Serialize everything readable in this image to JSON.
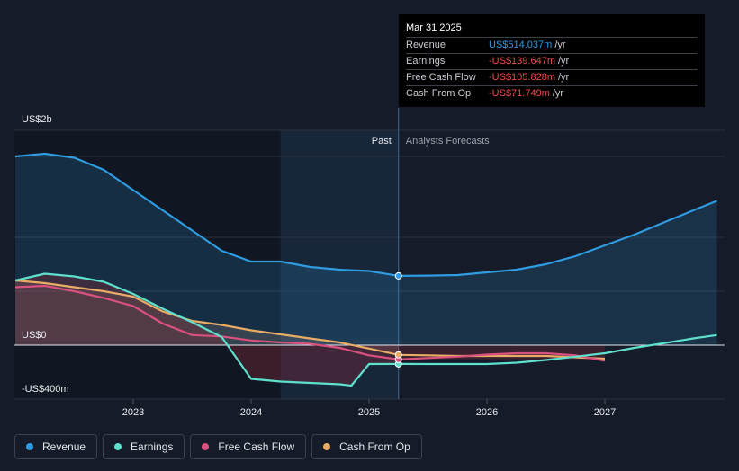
{
  "tooltip": {
    "date": "Mar 31 2025",
    "rows": [
      {
        "label": "Revenue",
        "value": "US$514.037m",
        "unit": "/yr",
        "color": "#2f9be0"
      },
      {
        "label": "Earnings",
        "value": "-US$139.647m",
        "unit": "/yr",
        "color": "#ef4b4b"
      },
      {
        "label": "Free Cash Flow",
        "value": "-US$105.828m",
        "unit": "/yr",
        "color": "#ef4b4b"
      },
      {
        "label": "Cash From Op",
        "value": "-US$71.749m",
        "unit": "/yr",
        "color": "#ef4b4b"
      }
    ]
  },
  "legend": [
    {
      "label": "Revenue",
      "color": "#2f9be0"
    },
    {
      "label": "Earnings",
      "color": "#5ee0cd"
    },
    {
      "label": "Free Cash Flow",
      "color": "#d9517f"
    },
    {
      "label": "Cash From Op",
      "color": "#e8ac66"
    }
  ],
  "chart_data": {
    "type": "line",
    "ylabels": [
      "US$2b",
      "US$0",
      "-US$400m"
    ],
    "past_label": "Past",
    "forecast_label": "Analysts Forecasts",
    "x_ticks": [
      {
        "label": "2023",
        "x": 2023.0
      },
      {
        "label": "2024",
        "x": 2024.0
      },
      {
        "label": "2025",
        "x": 2025.0
      },
      {
        "label": "2026",
        "x": 2026.0
      },
      {
        "label": "2027",
        "x": 2027.0
      }
    ],
    "xlim": [
      2021.75,
      2027.95
    ],
    "ylim": [
      -400,
      1700
    ],
    "past_end": 2025.25,
    "shade_start": 2024.25,
    "series": [
      {
        "name": "Revenue",
        "color": "#2f9be0",
        "points": [
          [
            2022.0,
            1400
          ],
          [
            2022.25,
            1420
          ],
          [
            2022.5,
            1390
          ],
          [
            2022.75,
            1300
          ],
          [
            2023.0,
            1150
          ],
          [
            2023.25,
            1000
          ],
          [
            2023.5,
            850
          ],
          [
            2023.75,
            700
          ],
          [
            2024.0,
            620
          ],
          [
            2024.25,
            620
          ],
          [
            2024.5,
            580
          ],
          [
            2024.75,
            560
          ],
          [
            2025.0,
            550
          ],
          [
            2025.25,
            514
          ],
          [
            2025.5,
            516
          ],
          [
            2025.75,
            520
          ],
          [
            2026.0,
            540
          ],
          [
            2026.25,
            560
          ],
          [
            2026.5,
            600
          ],
          [
            2026.75,
            660
          ],
          [
            2027.0,
            740
          ],
          [
            2027.25,
            820
          ],
          [
            2027.5,
            910
          ],
          [
            2027.75,
            1000
          ],
          [
            2027.95,
            1070
          ]
        ]
      },
      {
        "name": "Earnings",
        "color": "#5ee0cd",
        "points": [
          [
            2022.0,
            480
          ],
          [
            2022.25,
            530
          ],
          [
            2022.5,
            510
          ],
          [
            2022.75,
            470
          ],
          [
            2023.0,
            380
          ],
          [
            2023.25,
            270
          ],
          [
            2023.5,
            170
          ],
          [
            2023.75,
            60
          ],
          [
            2024.0,
            -250
          ],
          [
            2024.25,
            -270
          ],
          [
            2024.5,
            -280
          ],
          [
            2024.75,
            -290
          ],
          [
            2024.85,
            -300
          ],
          [
            2025.0,
            -140
          ],
          [
            2025.25,
            -139.6
          ],
          [
            2025.5,
            -140
          ],
          [
            2025.75,
            -140
          ],
          [
            2026.0,
            -140
          ],
          [
            2026.25,
            -130
          ],
          [
            2026.5,
            -110
          ],
          [
            2026.75,
            -85
          ],
          [
            2027.0,
            -60
          ],
          [
            2027.25,
            -20
          ],
          [
            2027.5,
            15
          ],
          [
            2027.75,
            50
          ],
          [
            2027.95,
            75
          ]
        ]
      },
      {
        "name": "Free Cash Flow",
        "color": "#d9517f",
        "points": [
          [
            2022.0,
            430
          ],
          [
            2022.25,
            440
          ],
          [
            2022.5,
            400
          ],
          [
            2022.75,
            350
          ],
          [
            2023.0,
            290
          ],
          [
            2023.25,
            160
          ],
          [
            2023.5,
            75
          ],
          [
            2023.75,
            65
          ],
          [
            2024.0,
            35
          ],
          [
            2024.25,
            20
          ],
          [
            2024.5,
            10
          ],
          [
            2024.75,
            -20
          ],
          [
            2025.0,
            -75
          ],
          [
            2025.25,
            -105.8
          ],
          [
            2025.5,
            -95
          ],
          [
            2025.75,
            -85
          ],
          [
            2026.0,
            -70
          ],
          [
            2026.25,
            -60
          ],
          [
            2026.5,
            -60
          ],
          [
            2026.75,
            -75
          ],
          [
            2027.0,
            -115
          ]
        ]
      },
      {
        "name": "Cash From Op",
        "color": "#e8ac66",
        "points": [
          [
            2022.0,
            480
          ],
          [
            2022.25,
            460
          ],
          [
            2022.5,
            430
          ],
          [
            2022.75,
            400
          ],
          [
            2023.0,
            360
          ],
          [
            2023.25,
            250
          ],
          [
            2023.5,
            180
          ],
          [
            2023.75,
            150
          ],
          [
            2024.0,
            110
          ],
          [
            2024.25,
            80
          ],
          [
            2024.5,
            50
          ],
          [
            2024.75,
            20
          ],
          [
            2025.0,
            -25
          ],
          [
            2025.25,
            -71.7
          ],
          [
            2025.5,
            -75
          ],
          [
            2025.75,
            -80
          ],
          [
            2026.0,
            -80
          ],
          [
            2026.25,
            -80
          ],
          [
            2026.5,
            -80
          ],
          [
            2026.75,
            -90
          ],
          [
            2027.0,
            -100
          ]
        ]
      }
    ]
  }
}
